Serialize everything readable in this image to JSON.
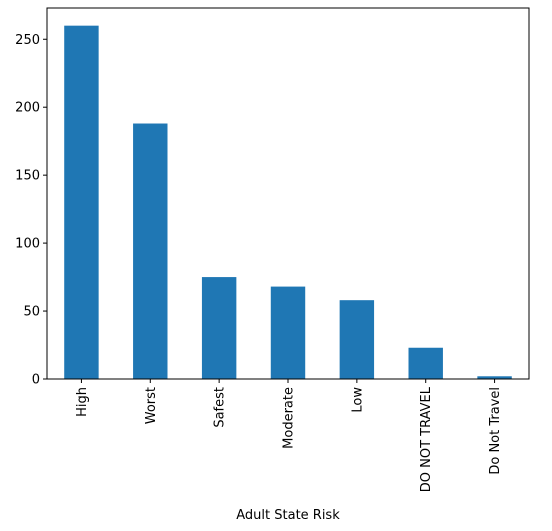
{
  "chart_data": {
    "type": "bar",
    "categories": [
      "High",
      "Worst",
      "Safest",
      "Moderate",
      "Low",
      "DO NOT TRAVEL",
      "Do Not Travel"
    ],
    "values": [
      260,
      188,
      75,
      68,
      58,
      23,
      2
    ],
    "xlabel": "Adult State Risk",
    "ylabel": "",
    "ylim": [
      0,
      273
    ],
    "yticks": [
      0,
      50,
      100,
      150,
      200,
      250
    ],
    "bar_color": "#1f77b4",
    "grid": false,
    "legend": "none"
  }
}
